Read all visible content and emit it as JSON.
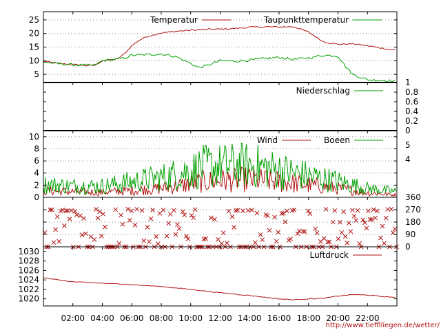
{
  "credit": "http://www.tiefflliegen.de/wetter/",
  "colors": {
    "red": "#b01010",
    "green": "#00a000",
    "grid": "#8a8a8a",
    "frame": "#000000"
  },
  "time_axis": {
    "labels": [
      "02:00",
      "04:00",
      "06:00",
      "08:00",
      "10:00",
      "12:00",
      "14:00",
      "16:00",
      "18:00",
      "20:00",
      "22:00"
    ],
    "range_hours": [
      0,
      24
    ]
  },
  "chart_data": [
    {
      "type": "line",
      "id": "temperature",
      "ylim": [
        2,
        28
      ],
      "yticks": [
        5,
        10,
        15,
        20,
        25
      ],
      "grid": true,
      "legend_placement": "top-right",
      "series": [
        {
          "name": "Temperatur",
          "color": "#b01010",
          "x": [
            0,
            1,
            2,
            3,
            3.5,
            4,
            5,
            5.5,
            6,
            6.5,
            7,
            8,
            9,
            10,
            11,
            12,
            13,
            14,
            15,
            16,
            17,
            18,
            19,
            20,
            21,
            22,
            23,
            24
          ],
          "y": [
            9.8,
            9.0,
            8.6,
            8.2,
            8.3,
            10.0,
            10.6,
            12.5,
            15.5,
            17.5,
            18.8,
            20.2,
            20.8,
            21.2,
            21.5,
            21.6,
            21.8,
            22.3,
            22.4,
            22.4,
            22.5,
            20.5,
            17.0,
            16.0,
            16.2,
            15.5,
            14.6,
            13.8
          ]
        },
        {
          "name": "Taupunkttemperatur",
          "color": "#00a000",
          "x": [
            0,
            1,
            2,
            3,
            3.5,
            4,
            5,
            5.5,
            6,
            7,
            8,
            9,
            10,
            10.5,
            11,
            12,
            13,
            14,
            15,
            16,
            17,
            18,
            19,
            20,
            20.5,
            21,
            22,
            23,
            24
          ],
          "y": [
            9.5,
            8.9,
            8.5,
            8.3,
            8.4,
            10.0,
            10.5,
            11.0,
            12.0,
            12.2,
            12.5,
            11.5,
            9.0,
            7.5,
            8.0,
            10.0,
            9.8,
            10.2,
            10.8,
            11.2,
            10.5,
            11.0,
            12.0,
            11.8,
            8.0,
            5.0,
            3.0,
            2.8,
            2.5
          ]
        }
      ]
    },
    {
      "type": "line",
      "id": "precipitation",
      "ylim": [
        0,
        1
      ],
      "yticks": [
        "0",
        "0.2",
        "0.4",
        "0.6",
        "0.8",
        "1"
      ],
      "y_axis_side": "right",
      "legend_placement": "top-right",
      "series": [
        {
          "name": "Niederschlag",
          "color": "#00a000",
          "x": [
            0,
            24
          ],
          "y": [
            0,
            0
          ]
        }
      ]
    },
    {
      "type": "line",
      "id": "wind",
      "ylim": [
        0,
        11
      ],
      "yticks": [
        0,
        2,
        4,
        6,
        8,
        10
      ],
      "right_ticks": [
        "4",
        "5"
      ],
      "grid": true,
      "legend_placement": "top-right",
      "series": [
        {
          "name": "Wind",
          "color": "#b01010",
          "envelope_x": [
            0,
            2,
            4,
            6,
            8,
            10,
            11,
            12,
            14,
            16,
            18,
            20,
            22,
            24
          ],
          "envelope_y": [
            1.2,
            1.0,
            0.9,
            1.2,
            1.6,
            2.4,
            2.8,
            3.0,
            3.2,
            2.8,
            2.2,
            1.6,
            0.8,
            0.4
          ]
        },
        {
          "name": "Boeen",
          "color": "#00a000",
          "envelope_x": [
            0,
            2,
            4,
            6,
            8,
            10,
            11,
            12,
            14,
            16,
            18,
            20,
            22,
            24
          ],
          "envelope_y": [
            2.3,
            2.0,
            2.0,
            2.8,
            3.5,
            4.8,
            5.5,
            5.6,
            5.8,
            4.8,
            3.8,
            2.8,
            1.6,
            1.0
          ]
        }
      ]
    },
    {
      "type": "scatter",
      "id": "wind-direction",
      "ylim": [
        0,
        360
      ],
      "yticks": [
        "0",
        "90",
        "180",
        "270",
        "360"
      ],
      "y_axis_side": "right",
      "series": [
        {
          "name": "",
          "color": "#b01010",
          "marker": "x"
        }
      ]
    },
    {
      "type": "line",
      "id": "pressure",
      "ylim": [
        1018.5,
        1031
      ],
      "yticks": [
        "1020",
        "1022",
        "1024",
        "1026",
        "1028",
        "1030"
      ],
      "legend_placement": "top-right",
      "series": [
        {
          "name": "Luftdruck",
          "color": "#b01010",
          "x": [
            0,
            1,
            2,
            4,
            6,
            8,
            10,
            12,
            14,
            16,
            17,
            18,
            19,
            20,
            21,
            22,
            23,
            24
          ],
          "y": [
            1024.5,
            1024.0,
            1023.6,
            1023.3,
            1023.0,
            1022.6,
            1022.0,
            1021.3,
            1020.7,
            1020.0,
            1019.8,
            1020.0,
            1020.1,
            1020.6,
            1020.9,
            1020.8,
            1020.5,
            1020.3
          ]
        }
      ]
    }
  ]
}
